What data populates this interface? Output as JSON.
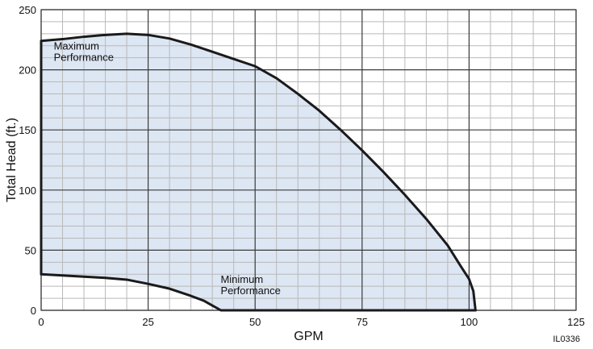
{
  "chart_data": {
    "type": "area",
    "xlabel": "GPM",
    "ylabel": "Total Head (ft.)",
    "xlim": [
      0,
      125
    ],
    "ylim": [
      0,
      250
    ],
    "x_ticks": [
      0,
      25,
      50,
      75,
      100,
      125
    ],
    "y_ticks": [
      0,
      50,
      100,
      150,
      200,
      250
    ],
    "minor_x_step": 5,
    "minor_y_step": 10,
    "grid": true,
    "series": [
      {
        "name": "Maximum Performance",
        "x": [
          0,
          5,
          10,
          15,
          20,
          25,
          30,
          35,
          40,
          45,
          50,
          55,
          60,
          65,
          70,
          75,
          80,
          85,
          90,
          95,
          98,
          100,
          101,
          101.5
        ],
        "y": [
          224,
          225.5,
          227.5,
          229,
          230,
          229,
          226,
          221,
          215,
          209,
          203,
          193,
          180,
          166,
          150,
          133,
          115,
          96,
          76,
          54,
          37,
          26,
          16,
          0
        ]
      },
      {
        "name": "Minimum Performance",
        "x": [
          0,
          5,
          10,
          15,
          20,
          25,
          30,
          35,
          38,
          40,
          42
        ],
        "y": [
          30,
          29,
          28,
          27,
          25.5,
          22,
          18,
          12,
          8,
          4,
          0
        ]
      }
    ],
    "annotations": [
      {
        "lines": [
          "Maximum",
          "Performance"
        ],
        "x": 2,
        "y": 216
      },
      {
        "lines": [
          "Minimum",
          "Performance"
        ],
        "x": 41,
        "y": 22
      }
    ],
    "figure_id": "IL0336",
    "colors": {
      "fill": "#dde6f3",
      "curve": "#1a1a1a",
      "major_grid": "#3a3a3a",
      "minor_grid": "#b9b9b9"
    }
  }
}
